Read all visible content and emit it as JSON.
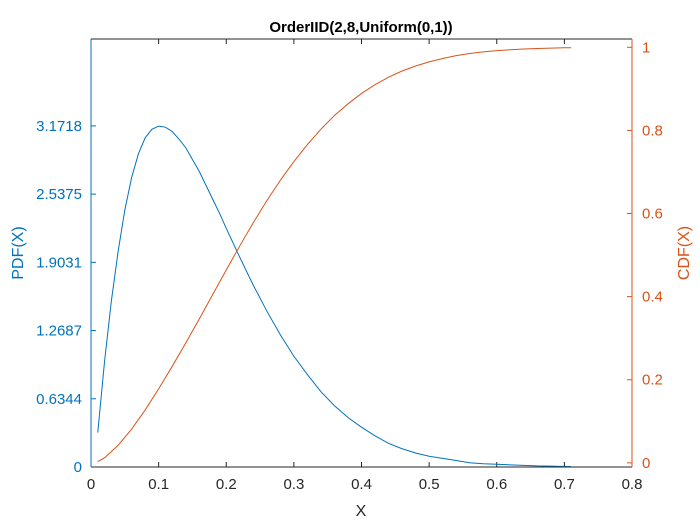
{
  "chart_data": {
    "type": "line",
    "title": "OrderIID(2,8,Uniform(0,1))",
    "xlabel": "X",
    "ylabel_left": "PDF(X)",
    "ylabel_right": "CDF(X)",
    "xlim": [
      0,
      0.8
    ],
    "ylim_left": [
      0,
      3.98
    ],
    "ylim_right": [
      -0.01,
      1.02
    ],
    "xticks": [
      "0",
      "0.1",
      "0.2",
      "0.3",
      "0.4",
      "0.5",
      "0.6",
      "0.7",
      "0.8"
    ],
    "yticks_left": [
      "0",
      "0.6344",
      "1.2687",
      "1.9031",
      "2.5375",
      "3.1718"
    ],
    "yticks_right": [
      "0",
      "0.2",
      "0.4",
      "0.6",
      "0.8",
      "1"
    ],
    "colors": {
      "left": "#0072BD",
      "right": "#D95319",
      "axis": "#262626"
    },
    "grid": false,
    "series": [
      {
        "axis": "left",
        "x": [
          0.01,
          0.02,
          0.03,
          0.04,
          0.05,
          0.06,
          0.07,
          0.08,
          0.09,
          0.1,
          0.11,
          0.12,
          0.13,
          0.14,
          0.15,
          0.16,
          0.17,
          0.18,
          0.19,
          0.2,
          0.22,
          0.24,
          0.26,
          0.28,
          0.3,
          0.32,
          0.34,
          0.36,
          0.38,
          0.4,
          0.42,
          0.44,
          0.46,
          0.48,
          0.5,
          0.52,
          0.54,
          0.56,
          0.58,
          0.6,
          0.62,
          0.64,
          0.66,
          0.68,
          0.7,
          0.71
        ],
        "y": [
          0.32,
          0.98,
          1.54,
          2.0,
          2.39,
          2.69,
          2.91,
          3.06,
          3.14,
          3.17,
          3.16,
          3.12,
          3.05,
          2.97,
          2.86,
          2.75,
          2.62,
          2.49,
          2.36,
          2.22,
          1.95,
          1.69,
          1.45,
          1.23,
          1.03,
          0.86,
          0.7,
          0.57,
          0.46,
          0.37,
          0.29,
          0.22,
          0.17,
          0.13,
          0.1,
          0.08,
          0.06,
          0.04,
          0.03,
          0.025,
          0.02,
          0.015,
          0.01,
          0.008,
          0.005,
          0.004
        ]
      },
      {
        "axis": "right",
        "x": [
          0.01,
          0.02,
          0.04,
          0.06,
          0.08,
          0.1,
          0.12,
          0.14,
          0.16,
          0.18,
          0.2,
          0.22,
          0.24,
          0.26,
          0.28,
          0.3,
          0.32,
          0.34,
          0.36,
          0.38,
          0.4,
          0.42,
          0.44,
          0.46,
          0.48,
          0.5,
          0.52,
          0.54,
          0.56,
          0.58,
          0.6,
          0.62,
          0.64,
          0.66,
          0.68,
          0.7,
          0.71
        ],
        "y": [
          0.003,
          0.012,
          0.042,
          0.081,
          0.127,
          0.178,
          0.232,
          0.288,
          0.346,
          0.405,
          0.464,
          0.522,
          0.578,
          0.631,
          0.68,
          0.725,
          0.766,
          0.803,
          0.836,
          0.864,
          0.889,
          0.91,
          0.928,
          0.943,
          0.955,
          0.965,
          0.973,
          0.98,
          0.985,
          0.989,
          0.992,
          0.994,
          0.996,
          0.997,
          0.998,
          0.999,
          0.999
        ]
      }
    ]
  }
}
